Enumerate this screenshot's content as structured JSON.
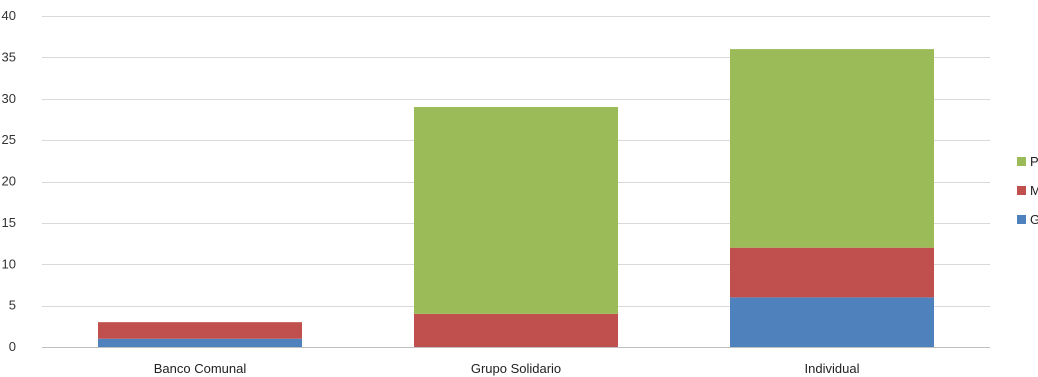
{
  "chart_data": {
    "type": "bar",
    "stacked": true,
    "categories": [
      "Banco Comunal",
      "Grupo Solidario",
      "Individual"
    ],
    "series": [
      {
        "name": "G",
        "color": "#4f81bd",
        "values": [
          1,
          0,
          6
        ]
      },
      {
        "name": "M",
        "color": "#c0504d",
        "values": [
          2,
          4,
          6
        ]
      },
      {
        "name": "P",
        "color": "#9bbb59",
        "values": [
          0,
          25,
          24
        ]
      }
    ],
    "ylim": [
      0,
      40
    ],
    "yticks": [
      0,
      5,
      10,
      15,
      20,
      25,
      30,
      35,
      40
    ],
    "grid": true,
    "legend_position": "right"
  }
}
